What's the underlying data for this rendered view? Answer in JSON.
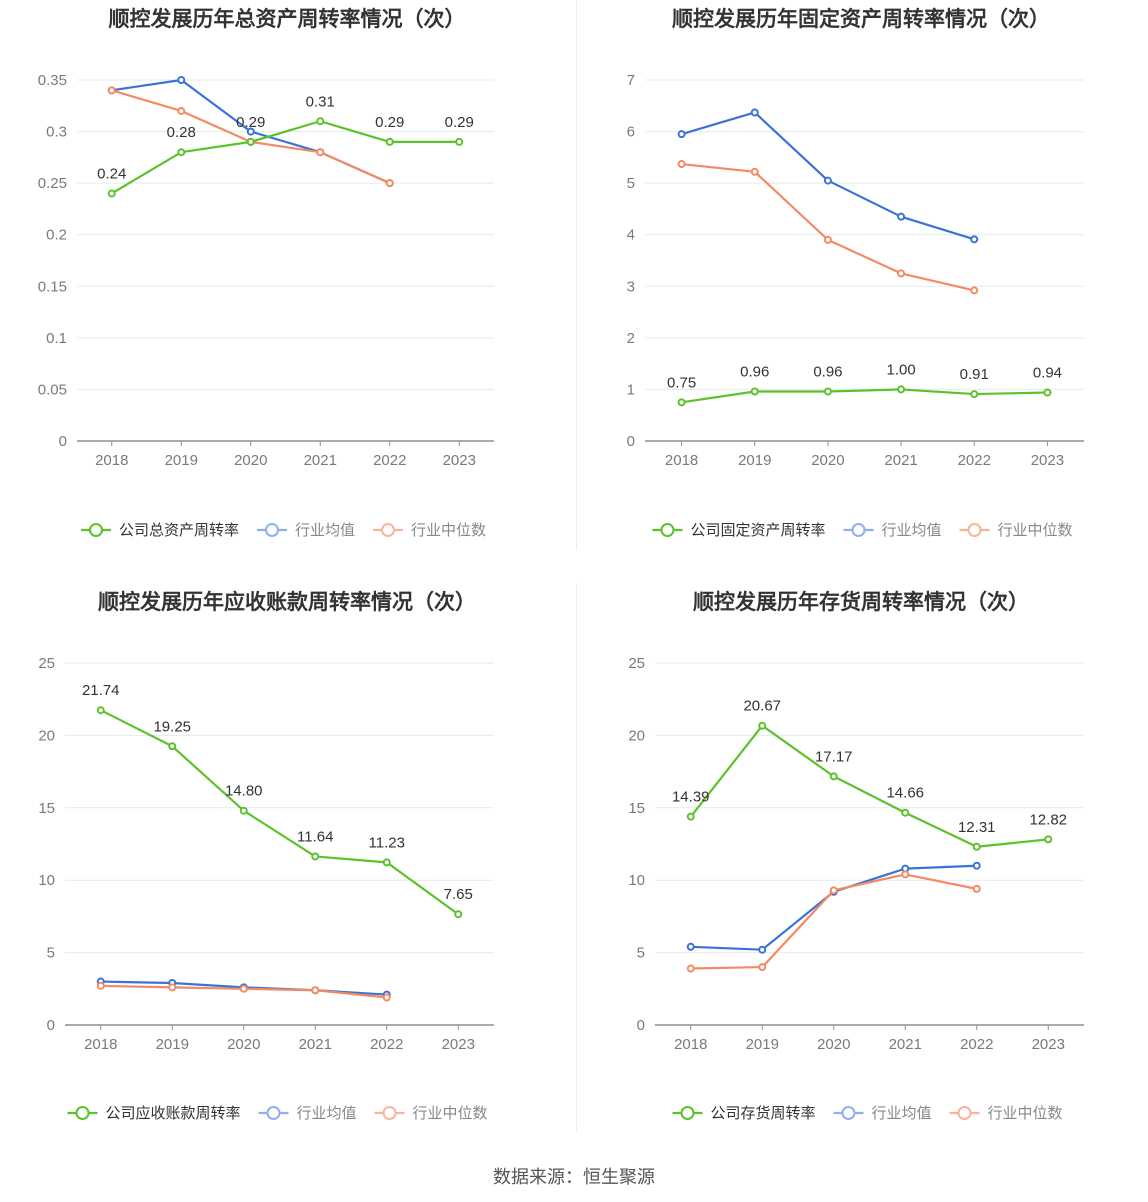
{
  "source_text": "数据来源：恒生聚源",
  "colors": {
    "company": "#5cc22b",
    "industry_avg": "#3a72d8",
    "industry_median": "#f48a62"
  },
  "chart_data": [
    {
      "type": "line",
      "title": "顺控发展历年总资产周转率情况（次）",
      "categories": [
        "2018",
        "2019",
        "2020",
        "2021",
        "2022",
        "2023"
      ],
      "ylim": [
        0,
        0.35
      ],
      "yticks": [
        "0",
        "0.05",
        "0.1",
        "0.15",
        "0.2",
        "0.25",
        "0.3",
        "0.35"
      ],
      "label_decimals": 2,
      "series": [
        {
          "name": "公司总资产周转率",
          "key": "company",
          "values": [
            0.24,
            0.28,
            0.29,
            0.31,
            0.29,
            0.29
          ],
          "labels": [
            "0.24",
            "0.28",
            "0.29",
            "0.31",
            "0.29",
            "0.29"
          ]
        },
        {
          "name": "行业均值",
          "key": "industry_avg",
          "values": [
            0.34,
            0.35,
            0.3,
            0.28,
            0.25,
            null
          ]
        },
        {
          "name": "行业中位数",
          "key": "industry_median",
          "values": [
            0.34,
            0.32,
            0.29,
            0.28,
            0.25,
            null
          ]
        }
      ]
    },
    {
      "type": "line",
      "title": "顺控发展历年固定资产周转率情况（次）",
      "categories": [
        "2018",
        "2019",
        "2020",
        "2021",
        "2022",
        "2023"
      ],
      "ylim": [
        0,
        7
      ],
      "yticks": [
        "0",
        "1",
        "2",
        "3",
        "4",
        "5",
        "6",
        "7"
      ],
      "series": [
        {
          "name": "公司固定资产周转率",
          "key": "company",
          "values": [
            0.75,
            0.96,
            0.96,
            1.0,
            0.91,
            0.94
          ],
          "labels": [
            "0.75",
            "0.96",
            "0.96",
            "1.00",
            "0.91",
            "0.94"
          ]
        },
        {
          "name": "行业均值",
          "key": "industry_avg",
          "values": [
            5.95,
            6.37,
            5.05,
            4.35,
            3.91,
            null
          ]
        },
        {
          "name": "行业中位数",
          "key": "industry_median",
          "values": [
            5.37,
            5.22,
            3.9,
            3.25,
            2.92,
            null
          ]
        }
      ]
    },
    {
      "type": "line",
      "title": "顺控发展历年应收账款周转率情况（次）",
      "categories": [
        "2018",
        "2019",
        "2020",
        "2021",
        "2022",
        "2023"
      ],
      "ylim": [
        0,
        25
      ],
      "yticks": [
        "0",
        "5",
        "10",
        "15",
        "20",
        "25"
      ],
      "series": [
        {
          "name": "公司应收账款周转率",
          "key": "company",
          "values": [
            21.74,
            19.25,
            14.8,
            11.64,
            11.23,
            7.65
          ],
          "labels": [
            "21.74",
            "19.25",
            "14.80",
            "11.64",
            "11.23",
            "7.65"
          ]
        },
        {
          "name": "行业均值",
          "key": "industry_avg",
          "values": [
            3.0,
            2.9,
            2.6,
            2.4,
            2.1,
            null
          ]
        },
        {
          "name": "行业中位数",
          "key": "industry_median",
          "values": [
            2.7,
            2.6,
            2.5,
            2.4,
            1.9,
            null
          ]
        }
      ]
    },
    {
      "type": "line",
      "title": "顺控发展历年存货周转率情况（次）",
      "categories": [
        "2018",
        "2019",
        "2020",
        "2021",
        "2022",
        "2023"
      ],
      "ylim": [
        0,
        25
      ],
      "yticks": [
        "0",
        "5",
        "10",
        "15",
        "20",
        "25"
      ],
      "series": [
        {
          "name": "公司存货周转率",
          "key": "company",
          "values": [
            14.39,
            20.67,
            17.17,
            14.66,
            12.31,
            12.82
          ],
          "labels": [
            "14.39",
            "20.67",
            "17.17",
            "14.66",
            "12.31",
            "12.82"
          ]
        },
        {
          "name": "行业均值",
          "key": "industry_avg",
          "values": [
            5.4,
            5.2,
            9.2,
            10.8,
            11.0,
            null
          ]
        },
        {
          "name": "行业中位数",
          "key": "industry_median",
          "values": [
            3.9,
            4.0,
            9.3,
            10.4,
            9.4,
            null
          ]
        }
      ]
    }
  ]
}
